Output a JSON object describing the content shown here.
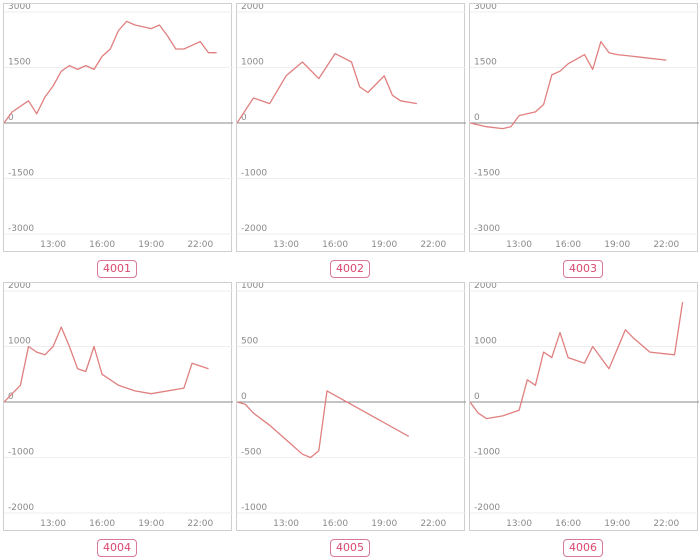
{
  "chart_data": [
    {
      "type": "line",
      "title": "4001",
      "x_ticks": [
        "13:00",
        "16:00",
        "19:00",
        "22:00"
      ],
      "y_ticks": [
        3000,
        1500,
        0,
        -1500,
        -3000
      ],
      "ylim": [
        -3000,
        3000
      ],
      "series": [
        {
          "color": "#e07f7f",
          "x": [
            "10:00",
            "10:30",
            "11:00",
            "11:30",
            "12:00",
            "12:30",
            "13:00",
            "13:30",
            "14:00",
            "14:30",
            "15:00",
            "15:30",
            "16:00",
            "16:30",
            "17:00",
            "17:30",
            "18:00",
            "18:30",
            "19:00",
            "19:30",
            "20:00",
            "20:30",
            "21:00",
            "21:30",
            "22:00",
            "22:30",
            "23:00"
          ],
          "values": [
            0,
            300,
            450,
            600,
            250,
            700,
            1000,
            1400,
            1550,
            1450,
            1550,
            1450,
            1800,
            2000,
            2500,
            2750,
            2650,
            2600,
            2550,
            2650,
            2350,
            2000,
            2000,
            2100,
            2200,
            1900,
            1900
          ]
        }
      ]
    },
    {
      "type": "line",
      "title": "4002",
      "x_ticks": [
        "13:00",
        "16:00",
        "19:00",
        "22:00"
      ],
      "y_ticks": [
        2000,
        1000,
        0,
        -1000,
        -2000
      ],
      "ylim": [
        -2000,
        2000
      ],
      "series": [
        {
          "color": "#e07f7f",
          "x": [
            "10:00",
            "11:00",
            "12:00",
            "13:00",
            "14:00",
            "15:00",
            "16:00",
            "17:00",
            "17:30",
            "18:00",
            "19:00",
            "19:30",
            "20:00",
            "21:00"
          ],
          "values": [
            0,
            450,
            350,
            850,
            1100,
            800,
            1250,
            1100,
            650,
            550,
            850,
            500,
            400,
            350
          ]
        }
      ]
    },
    {
      "type": "line",
      "title": "4003",
      "x_ticks": [
        "13:00",
        "16:00",
        "19:00",
        "22:00"
      ],
      "y_ticks": [
        3000,
        1500,
        0,
        -1500,
        -3000
      ],
      "ylim": [
        -3000,
        3000
      ],
      "series": [
        {
          "color": "#e07f7f",
          "x": [
            "10:00",
            "11:00",
            "12:00",
            "12:30",
            "13:00",
            "14:00",
            "14:30",
            "15:00",
            "15:30",
            "16:00",
            "17:00",
            "17:30",
            "18:00",
            "18:30",
            "19:00",
            "20:00",
            "21:00",
            "22:00"
          ],
          "values": [
            0,
            -100,
            -150,
            -100,
            200,
            300,
            500,
            1300,
            1400,
            1600,
            1850,
            1450,
            2200,
            1900,
            1850,
            1800,
            1750,
            1700
          ]
        }
      ]
    },
    {
      "type": "line",
      "title": "4004",
      "x_ticks": [
        "13:00",
        "16:00",
        "19:00",
        "22:00"
      ],
      "y_ticks": [
        2000,
        1000,
        0,
        -1000,
        -2000
      ],
      "ylim": [
        -2000,
        2000
      ],
      "series": [
        {
          "color": "#e07f7f",
          "x": [
            "10:00",
            "11:00",
            "11:30",
            "12:00",
            "12:30",
            "13:00",
            "13:30",
            "14:00",
            "14:30",
            "15:00",
            "15:30",
            "16:00",
            "17:00",
            "18:00",
            "19:00",
            "21:00",
            "21:30",
            "22:30"
          ],
          "values": [
            0,
            300,
            1000,
            900,
            850,
            1000,
            1350,
            1000,
            600,
            550,
            1000,
            500,
            300,
            200,
            150,
            250,
            700,
            600
          ]
        }
      ]
    },
    {
      "type": "line",
      "title": "4005",
      "x_ticks": [
        "13:00",
        "16:00",
        "19:00",
        "22:00"
      ],
      "y_ticks": [
        1000,
        500,
        0,
        -500,
        -1000
      ],
      "ylim": [
        -1000,
        1000
      ],
      "series": [
        {
          "color": "#e07f7f",
          "x": [
            "10:00",
            "10:30",
            "11:00",
            "12:00",
            "13:00",
            "14:00",
            "14:30",
            "15:00",
            "15:30",
            "20:30"
          ],
          "values": [
            0,
            -20,
            -100,
            -210,
            -340,
            -470,
            -500,
            -440,
            100,
            -310
          ]
        }
      ]
    },
    {
      "type": "line",
      "title": "4006",
      "x_ticks": [
        "13:00",
        "16:00",
        "19:00",
        "22:00"
      ],
      "y_ticks": [
        2000,
        1000,
        0,
        -1000,
        -2000
      ],
      "ylim": [
        -2000,
        2000
      ],
      "series": [
        {
          "color": "#e07f7f",
          "x": [
            "10:00",
            "10:30",
            "11:00",
            "12:00",
            "13:00",
            "13:30",
            "14:00",
            "14:30",
            "15:00",
            "15:30",
            "16:00",
            "17:00",
            "17:30",
            "18:30",
            "19:00",
            "19:30",
            "20:00",
            "21:00",
            "22:30",
            "23:00"
          ],
          "values": [
            0,
            -200,
            -300,
            -250,
            -150,
            400,
            300,
            900,
            800,
            1250,
            800,
            700,
            1000,
            600,
            950,
            1300,
            1150,
            900,
            850,
            1800
          ]
        }
      ]
    }
  ]
}
